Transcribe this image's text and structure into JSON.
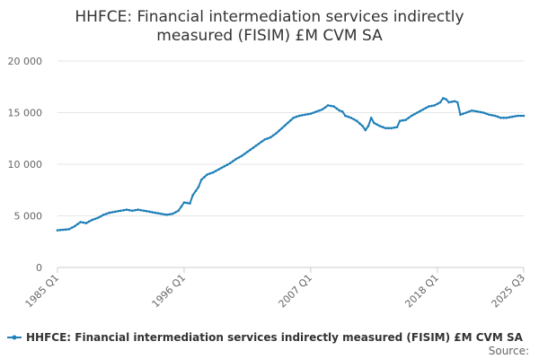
{
  "chart_data": {
    "type": "line",
    "title_lines": [
      "HHFCE: Financial intermediation services indirectly",
      "measured (FISIM) £M CVM SA"
    ],
    "ylim": [
      0,
      20000
    ],
    "y_ticks": [
      0,
      5000,
      10000,
      15000,
      20000
    ],
    "y_tick_labels": [
      "0",
      "5 000",
      "10 000",
      "15 000",
      "20 000"
    ],
    "x_ticks": [
      {
        "label": "1985 Q1",
        "index": 0
      },
      {
        "label": "1996 Q1",
        "index": 44
      },
      {
        "label": "2007 Q1",
        "index": 88
      },
      {
        "label": "2018 Q1",
        "index": 132
      },
      {
        "label": "2025 Q3",
        "index": 162
      }
    ],
    "grid": "horizontal",
    "legend_position": "bottom",
    "series": [
      {
        "name": "HHFCE: Financial intermediation services indirectly measured (FISIM) £M CVM SA",
        "color": "#1f7fb8",
        "start": "1985 Q1",
        "end": "2025 Q3",
        "keyframes": [
          [
            0,
            3600
          ],
          [
            4,
            3700
          ],
          [
            6,
            4000
          ],
          [
            8,
            4400
          ],
          [
            10,
            4300
          ],
          [
            12,
            4600
          ],
          [
            14,
            4800
          ],
          [
            16,
            5100
          ],
          [
            18,
            5300
          ],
          [
            20,
            5400
          ],
          [
            22,
            5500
          ],
          [
            24,
            5600
          ],
          [
            26,
            5500
          ],
          [
            28,
            5600
          ],
          [
            30,
            5500
          ],
          [
            32,
            5400
          ],
          [
            34,
            5300
          ],
          [
            36,
            5200
          ],
          [
            38,
            5100
          ],
          [
            40,
            5200
          ],
          [
            42,
            5500
          ],
          [
            44,
            6300
          ],
          [
            46,
            6200
          ],
          [
            47,
            7000
          ],
          [
            49,
            7800
          ],
          [
            50,
            8500
          ],
          [
            52,
            9000
          ],
          [
            54,
            9200
          ],
          [
            56,
            9500
          ],
          [
            58,
            9800
          ],
          [
            60,
            10100
          ],
          [
            62,
            10500
          ],
          [
            64,
            10800
          ],
          [
            66,
            11200
          ],
          [
            68,
            11600
          ],
          [
            70,
            12000
          ],
          [
            72,
            12400
          ],
          [
            74,
            12600
          ],
          [
            76,
            13000
          ],
          [
            78,
            13500
          ],
          [
            80,
            14000
          ],
          [
            82,
            14500
          ],
          [
            84,
            14700
          ],
          [
            86,
            14800
          ],
          [
            88,
            14900
          ],
          [
            90,
            15100
          ],
          [
            92,
            15300
          ],
          [
            94,
            15700
          ],
          [
            96,
            15600
          ],
          [
            98,
            15200
          ],
          [
            99,
            15100
          ],
          [
            100,
            14700
          ],
          [
            102,
            14500
          ],
          [
            104,
            14200
          ],
          [
            106,
            13700
          ],
          [
            107,
            13300
          ],
          [
            108,
            13700
          ],
          [
            109,
            14500
          ],
          [
            110,
            14000
          ],
          [
            112,
            13700
          ],
          [
            114,
            13500
          ],
          [
            116,
            13500
          ],
          [
            118,
            13600
          ],
          [
            119,
            14200
          ],
          [
            121,
            14300
          ],
          [
            123,
            14700
          ],
          [
            125,
            15000
          ],
          [
            127,
            15300
          ],
          [
            129,
            15600
          ],
          [
            131,
            15700
          ],
          [
            133,
            16000
          ],
          [
            134,
            16400
          ],
          [
            135,
            16300
          ],
          [
            136,
            16000
          ],
          [
            138,
            16100
          ],
          [
            139,
            16000
          ],
          [
            140,
            14800
          ],
          [
            142,
            15000
          ],
          [
            144,
            15200
          ],
          [
            146,
            15100
          ],
          [
            148,
            15000
          ],
          [
            150,
            14800
          ],
          [
            152,
            14700
          ],
          [
            154,
            14500
          ],
          [
            156,
            14500
          ],
          [
            158,
            14600
          ],
          [
            160,
            14700
          ],
          [
            162,
            14700
          ]
        ]
      }
    ],
    "source_label": "Source:"
  }
}
